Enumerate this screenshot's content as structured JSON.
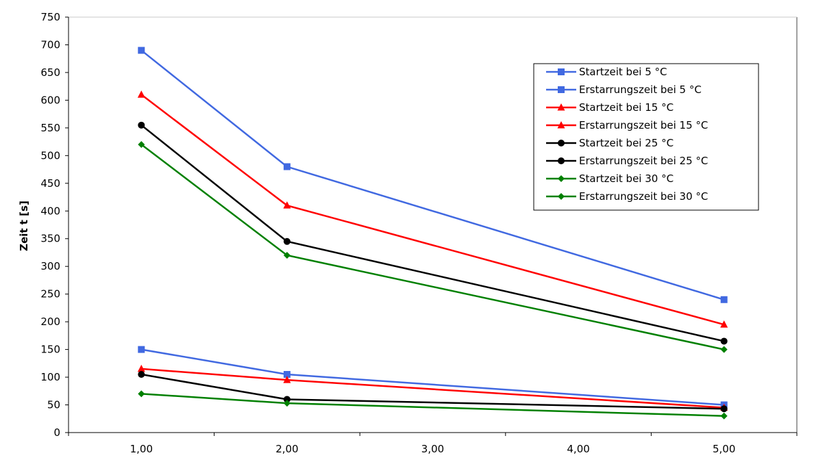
{
  "chart_data": {
    "type": "line",
    "title": "",
    "xlabel": "",
    "ylabel": "Zeit t [s]",
    "x": [
      1,
      2,
      5
    ],
    "xlim": [
      0.5,
      5.5
    ],
    "ylim": [
      0,
      750
    ],
    "x_ticks": [
      1,
      2,
      3,
      4,
      5
    ],
    "x_tick_labels": [
      "1,00",
      "2,00",
      "3,00",
      "4,00",
      "5,00"
    ],
    "y_ticks": [
      0,
      50,
      100,
      150,
      200,
      250,
      300,
      350,
      400,
      450,
      500,
      550,
      600,
      650,
      700,
      750
    ],
    "y_tick_labels": [
      "0",
      "50",
      "100",
      "150",
      "200",
      "250",
      "300",
      "350",
      "400",
      "450",
      "500",
      "550",
      "600",
      "650",
      "700",
      "750"
    ],
    "grid": false,
    "legend_position": "top-right",
    "series": [
      {
        "name": "Startzeit bei 5 °C",
        "values": [
          150,
          105,
          50
        ],
        "color": "#4169E1",
        "marker": "square"
      },
      {
        "name": "Erstarrungszeit bei 5 °C",
        "values": [
          690,
          480,
          240
        ],
        "color": "#4169E1",
        "marker": "square"
      },
      {
        "name": "Startzeit bei 15 °C",
        "values": [
          115,
          95,
          45
        ],
        "color": "#FF0000",
        "marker": "triangle"
      },
      {
        "name": "Erstarrungszeit bei 15 °C",
        "values": [
          610,
          410,
          195
        ],
        "color": "#FF0000",
        "marker": "triangle"
      },
      {
        "name": "Startzeit bei 25 °C",
        "values": [
          105,
          60,
          43
        ],
        "color": "#000000",
        "marker": "circle"
      },
      {
        "name": "Erstarrungszeit bei 25 °C",
        "values": [
          555,
          345,
          165
        ],
        "color": "#000000",
        "marker": "circle"
      },
      {
        "name": "Startzeit bei 30 °C",
        "values": [
          70,
          53,
          30
        ],
        "color": "#008000",
        "marker": "diamond"
      },
      {
        "name": "Erstarrungszeit bei 30 °C",
        "values": [
          520,
          320,
          150
        ],
        "color": "#008000",
        "marker": "diamond"
      }
    ]
  }
}
